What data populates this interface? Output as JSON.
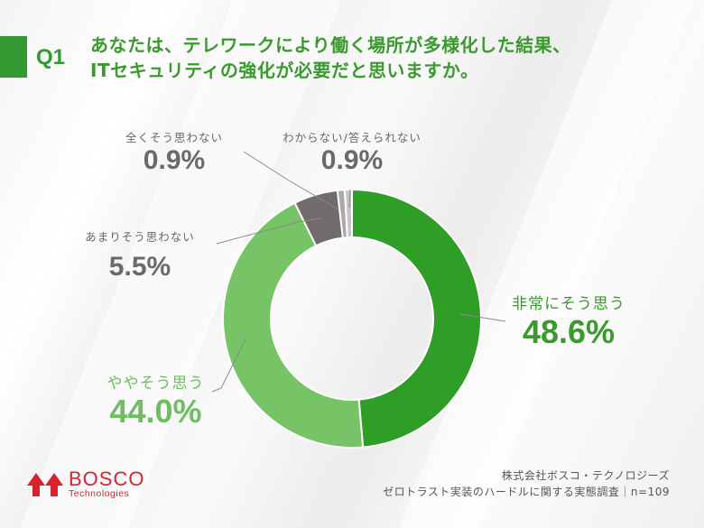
{
  "question": {
    "number": "Q1",
    "line1": "あなたは、テレワークにより働く場所が多様化した結果、",
    "line2": "ITセキュリティの強化が必要だと思いますか。"
  },
  "labels": {
    "strongly_agree": {
      "caption": "非常にそう思う",
      "value": "48.6%"
    },
    "somewhat_agree": {
      "caption": "ややそう思う",
      "value": "44.0%"
    },
    "not_really": {
      "caption": "あまりそう思わない",
      "value": "5.5%"
    },
    "not_at_all": {
      "caption": "全くそう思わない",
      "value": "0.9%"
    },
    "dont_know": {
      "caption": "わからない/答えられない",
      "value": "0.9%"
    }
  },
  "logo": {
    "name": "BOSCO",
    "sub": "Technologies"
  },
  "source": {
    "company": "株式会社ボスコ・テクノロジーズ",
    "survey": "ゼロトラスト実装のハードルに関する実態調査｜n=109"
  },
  "colors": {
    "strongly_agree": "#2f9e27",
    "somewhat_agree": "#77c467",
    "not_really": "#716b6b",
    "not_at_all": "#a9a9a9",
    "dont_know": "#c6c6c6",
    "accent": "#339933",
    "brand_red": "#d8222c"
  },
  "chart_data": {
    "type": "pie",
    "subtype": "donut",
    "title": "あなたは、テレワークにより働く場所が多様化した結果、ITセキュリティの強化が必要だと思いますか。",
    "categories": [
      "非常にそう思う",
      "ややそう思う",
      "あまりそう思わない",
      "全くそう思わない",
      "わからない/答えられない"
    ],
    "values": [
      48.6,
      44.0,
      5.5,
      0.9,
      0.9
    ],
    "unit": "%",
    "start_angle": "12 o'clock, clockwise",
    "n": 109,
    "legend": "callout labels"
  }
}
